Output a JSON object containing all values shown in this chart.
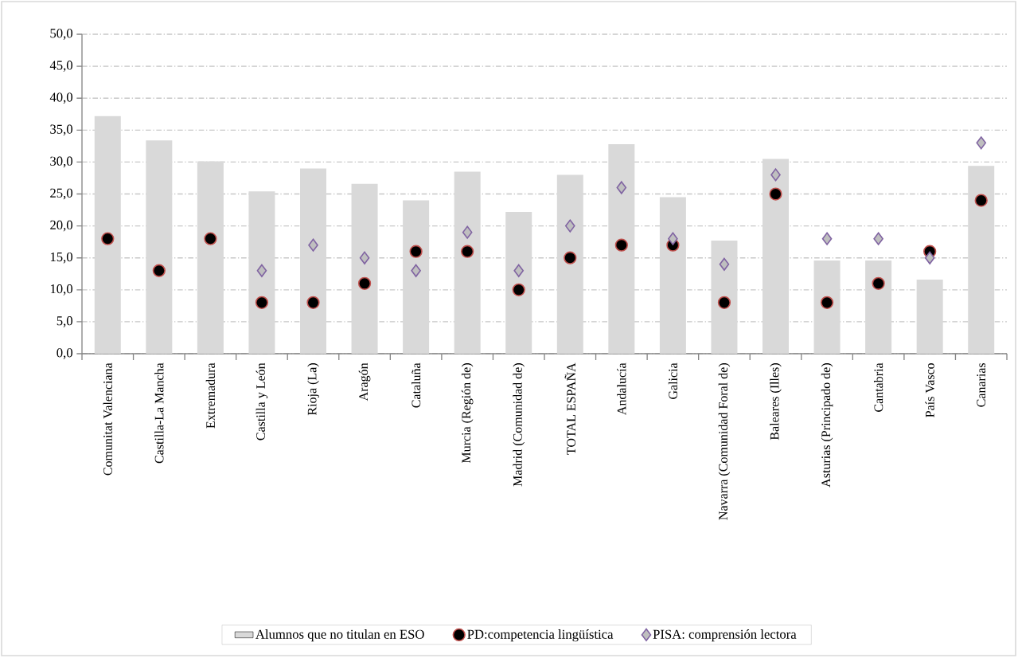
{
  "chart_data": {
    "type": "bar",
    "categories": [
      "Comunitat Valenciana",
      "Castilla-La Mancha",
      "Extremadura",
      "Castilla y León",
      "Rioja (La)",
      "Aragón",
      "Cataluña",
      "Murcia (Región de)",
      "Madrid (Comunidad de)",
      "TOTAL ESPAÑA",
      "Andalucía",
      "Galicia",
      "Navarra (Comunidad Foral de)",
      "Baleares (Illes)",
      "Asturias (Principado de)",
      "Cantabria",
      "País Vasco",
      "Canarias"
    ],
    "series": [
      {
        "name": "Alumnos que no titulan en ESO",
        "color": "#d9d9d9",
        "values": [
          37.2,
          33.4,
          30.1,
          25.4,
          29.0,
          26.6,
          24.0,
          28.5,
          22.2,
          28.0,
          32.8,
          24.5,
          17.7,
          30.5,
          14.6,
          14.6,
          11.6,
          29.4
        ]
      },
      {
        "name": "PD:competencia lingüística",
        "type": "scatter",
        "marker": "circle",
        "color": "#000000",
        "values": [
          18,
          13,
          18,
          8,
          8,
          11,
          16,
          16,
          10,
          15,
          17,
          17,
          8,
          25,
          8,
          11,
          16,
          24
        ]
      },
      {
        "name": "PISA: comprensión lectora",
        "type": "scatter",
        "marker": "diamond",
        "color": "#bfbfbf",
        "values": [
          null,
          null,
          null,
          13,
          17,
          15,
          13,
          19,
          13,
          20,
          26,
          18,
          14,
          28,
          18,
          18,
          15,
          33
        ]
      }
    ],
    "ylim": [
      0,
      50
    ],
    "yticks": [
      {
        "value": 0,
        "label": "0,0"
      },
      {
        "value": 5,
        "label": "5,0"
      },
      {
        "value": 10,
        "label": "10,0"
      },
      {
        "value": 15,
        "label": "15,0"
      },
      {
        "value": 20,
        "label": "20,0"
      },
      {
        "value": 25,
        "label": "25,0"
      },
      {
        "value": 30,
        "label": "30,0"
      },
      {
        "value": 35,
        "label": "35,0"
      },
      {
        "value": 40,
        "label": "40,0"
      },
      {
        "value": 45,
        "label": "45,0"
      },
      {
        "value": 50,
        "label": "50,0"
      }
    ],
    "grid": "y",
    "legend": "bottom"
  }
}
